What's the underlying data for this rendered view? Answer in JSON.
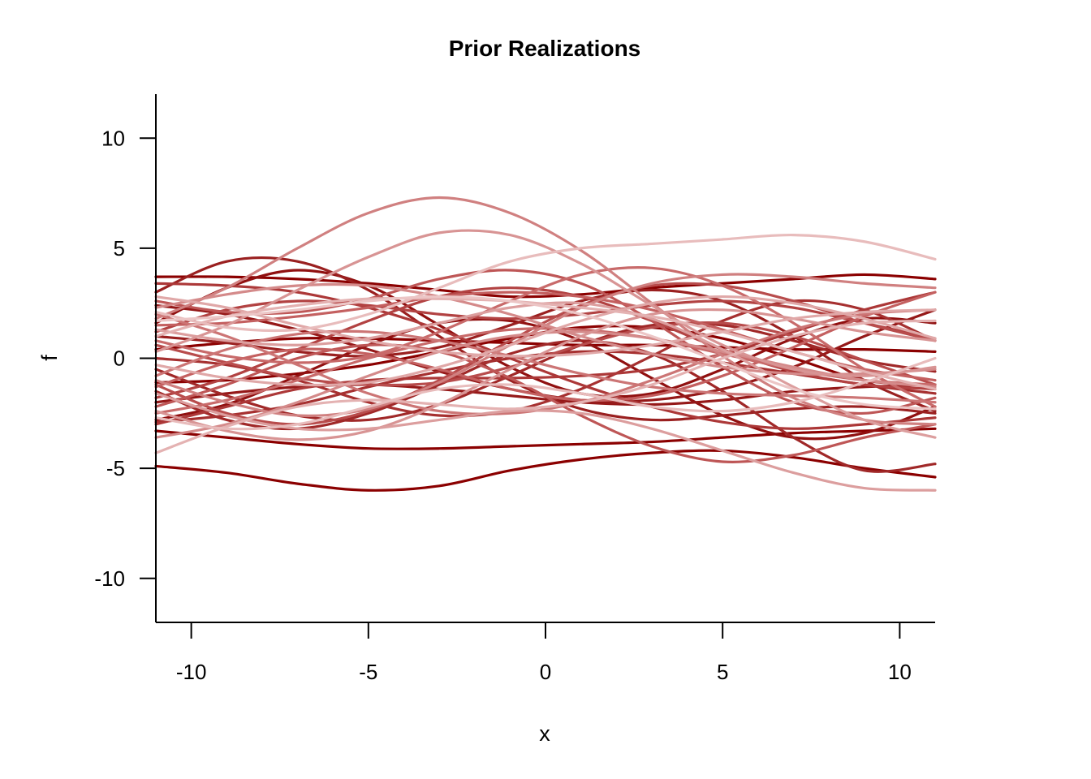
{
  "chart_data": {
    "type": "line",
    "title": "Prior Realizations",
    "xlabel": "x",
    "ylabel": "f",
    "xlim": [
      -11,
      11
    ],
    "ylim": [
      -12,
      12
    ],
    "xticks": [
      -10,
      -5,
      0,
      5,
      10
    ],
    "yticks": [
      -10,
      -5,
      0,
      5,
      10
    ],
    "grid": false,
    "legend": "none",
    "x": [
      -11,
      -9,
      -7,
      -5,
      -3,
      -1,
      1,
      3,
      5,
      7,
      9,
      11
    ],
    "series": [
      {
        "color": "#8b0000",
        "values": [
          3.7,
          3.7,
          3.6,
          3.4,
          3.1,
          2.8,
          2.9,
          3.2,
          3.4,
          3.6,
          3.8,
          3.6
        ]
      },
      {
        "color": "#8b0000",
        "values": [
          -4.9,
          -5.2,
          -5.7,
          -6.0,
          -5.8,
          -5.1,
          -4.6,
          -4.3,
          -4.2,
          -4.5,
          -5.0,
          -5.4
        ]
      },
      {
        "color": "#8b0000",
        "values": [
          0.4,
          0.7,
          0.9,
          0.9,
          0.8,
          0.7,
          0.6,
          0.6,
          0.5,
          0.4,
          0.4,
          0.3
        ]
      },
      {
        "color": "#8b0000",
        "values": [
          -1.1,
          -1.0,
          -0.7,
          -0.3,
          0.3,
          0.9,
          1.4,
          1.4,
          0.9,
          0.0,
          -1.0,
          -1.2
        ]
      },
      {
        "color": "#8b0000",
        "values": [
          -3.3,
          -3.6,
          -3.9,
          -4.1,
          -4.1,
          -4.0,
          -3.9,
          -3.8,
          -3.6,
          -3.4,
          -3.3,
          -3.2
        ]
      },
      {
        "color": "#901010",
        "values": [
          1.6,
          3.2,
          4.0,
          3.3,
          1.5,
          -0.4,
          -1.6,
          -1.6,
          -0.5,
          0.9,
          1.8,
          1.6
        ]
      },
      {
        "color": "#901010",
        "values": [
          -2.8,
          -2.1,
          -0.8,
          0.6,
          1.6,
          1.7,
          0.8,
          -0.9,
          -2.6,
          -3.6,
          -3.4,
          -2.2
        ]
      },
      {
        "color": "#951818",
        "values": [
          2.4,
          2.0,
          1.3,
          0.4,
          -0.6,
          -1.4,
          -1.9,
          -1.9,
          -1.4,
          -0.4,
          1.0,
          2.2
        ]
      },
      {
        "color": "#951818",
        "values": [
          -2.0,
          -1.6,
          -1.3,
          -1.2,
          -1.4,
          -1.7,
          -2.0,
          -2.1,
          -1.9,
          -1.5,
          -1.3,
          -1.2
        ]
      },
      {
        "color": "#9a2020",
        "values": [
          3.0,
          4.4,
          4.4,
          3.1,
          1.0,
          -1.0,
          -2.3,
          -2.8,
          -2.6,
          -2.3,
          -2.2,
          -2.5
        ]
      },
      {
        "color": "#9a2020",
        "values": [
          1.0,
          0.7,
          0.3,
          0.1,
          0.5,
          1.5,
          2.6,
          3.1,
          2.6,
          1.0,
          -1.0,
          -2.4
        ]
      },
      {
        "color": "#a02828",
        "values": [
          -0.5,
          -1.7,
          -2.6,
          -2.8,
          -2.1,
          -0.8,
          0.6,
          1.5,
          1.5,
          0.8,
          -0.1,
          -0.6
        ]
      },
      {
        "color": "#a02828",
        "values": [
          -1.5,
          -2.8,
          -3.2,
          -2.5,
          -1.2,
          0.2,
          0.8,
          0.2,
          -1.5,
          -3.6,
          -5.1,
          -4.8
        ]
      },
      {
        "color": "#a63030",
        "values": [
          0.0,
          -0.3,
          -1.0,
          -2.0,
          -2.6,
          -2.4,
          -1.4,
          0.1,
          1.7,
          2.6,
          2.2,
          0.8
        ]
      },
      {
        "color": "#a63030",
        "values": [
          -2.9,
          -2.6,
          -2.1,
          -1.3,
          -0.6,
          0.0,
          0.3,
          0.2,
          -0.2,
          -0.7,
          -1.2,
          -1.6
        ]
      },
      {
        "color": "#ac3838",
        "values": [
          3.4,
          3.3,
          3.0,
          2.3,
          1.3,
          0.0,
          -1.2,
          -2.2,
          -2.9,
          -3.2,
          -3.0,
          -2.7
        ]
      },
      {
        "color": "#ac3838",
        "values": [
          -3.0,
          -2.2,
          -1.4,
          -1.0,
          -0.9,
          -0.9,
          -0.8,
          -0.5,
          0.2,
          1.2,
          2.2,
          3.0
        ]
      },
      {
        "color": "#b24242",
        "values": [
          1.2,
          2.2,
          2.6,
          2.4,
          2.0,
          1.8,
          2.0,
          2.4,
          2.6,
          2.3,
          1.6,
          0.9
        ]
      },
      {
        "color": "#b24242",
        "values": [
          -1.8,
          -0.9,
          0.4,
          1.7,
          2.8,
          3.2,
          2.8,
          1.7,
          0.4,
          -0.6,
          -1.2,
          -1.4
        ]
      },
      {
        "color": "#b84c4c",
        "values": [
          -1.2,
          -2.5,
          -3.0,
          -2.4,
          -1.0,
          0.8,
          2.4,
          3.3,
          3.3,
          2.6,
          1.6,
          0.8
        ]
      },
      {
        "color": "#b84c4c",
        "values": [
          0.6,
          -0.2,
          -0.9,
          -1.2,
          -1.1,
          -0.4,
          0.6,
          1.4,
          1.6,
          1.0,
          -0.1,
          -1.2
        ]
      },
      {
        "color": "#be5656",
        "values": [
          2.6,
          2.1,
          2.1,
          2.7,
          3.6,
          4.0,
          3.4,
          1.7,
          -0.4,
          -2.0,
          -2.5,
          -1.8
        ]
      },
      {
        "color": "#be5656",
        "values": [
          -2.2,
          -1.2,
          0.0,
          0.6,
          0.3,
          -0.9,
          -2.6,
          -4.0,
          -4.7,
          -4.4,
          -3.6,
          -3.0
        ]
      },
      {
        "color": "#c46060",
        "values": [
          1.5,
          1.6,
          1.9,
          2.3,
          2.8,
          3.0,
          2.8,
          2.2,
          1.3,
          0.3,
          -0.5,
          -1.0
        ]
      },
      {
        "color": "#c46060",
        "values": [
          -1.3,
          -0.2,
          0.4,
          0.2,
          -0.5,
          -1.4,
          -1.9,
          -1.7,
          -0.8,
          0.5,
          1.9,
          3.0
        ]
      },
      {
        "color": "#c86a6a",
        "values": [
          0.8,
          0.1,
          -0.2,
          0.1,
          1.2,
          2.6,
          3.8,
          4.1,
          3.3,
          1.6,
          -0.5,
          -2.2
        ]
      },
      {
        "color": "#c86a6a",
        "values": [
          -2.5,
          -1.9,
          -1.0,
          0.0,
          0.8,
          1.3,
          1.3,
          0.9,
          0.2,
          -0.5,
          -1.0,
          -1.2
        ]
      },
      {
        "color": "#cc7575",
        "values": [
          2.0,
          1.0,
          -0.3,
          -1.6,
          -2.4,
          -2.5,
          -2.0,
          -1.0,
          0.2,
          1.3,
          2.0,
          2.2
        ]
      },
      {
        "color": "#cc7575",
        "values": [
          -0.8,
          0.4,
          1.1,
          1.2,
          0.8,
          0.1,
          -0.7,
          -1.3,
          -1.6,
          -1.7,
          -1.8,
          -2.0
        ]
      },
      {
        "color": "#d08080",
        "values": [
          1.8,
          3.2,
          5.0,
          6.6,
          7.3,
          6.6,
          4.9,
          2.5,
          0.1,
          -1.8,
          -2.8,
          -3.0
        ]
      },
      {
        "color": "#d08080",
        "values": [
          -1.0,
          -2.0,
          -2.6,
          -2.3,
          -1.1,
          0.6,
          2.3,
          3.4,
          3.8,
          3.7,
          3.4,
          3.2
        ]
      },
      {
        "color": "#d48a8a",
        "values": [
          2.3,
          2.9,
          3.3,
          3.3,
          2.8,
          2.0,
          1.0,
          0.2,
          -0.4,
          -0.7,
          -0.7,
          -0.5
        ]
      },
      {
        "color": "#d48a8a",
        "values": [
          -3.6,
          -3.0,
          -2.0,
          -0.8,
          0.3,
          1.0,
          1.2,
          0.9,
          0.3,
          -0.4,
          -1.0,
          -1.3
        ]
      },
      {
        "color": "#d89494",
        "values": [
          0.3,
          1.5,
          3.1,
          4.6,
          5.7,
          5.6,
          4.3,
          2.4,
          0.6,
          -0.5,
          -0.8,
          -0.4
        ]
      },
      {
        "color": "#d89494",
        "values": [
          -2.4,
          -3.3,
          -3.7,
          -3.3,
          -2.1,
          -0.5,
          1.0,
          2.0,
          2.2,
          1.8,
          1.2,
          0.8
        ]
      },
      {
        "color": "#dc9e9e",
        "values": [
          1.3,
          0.8,
          0.6,
          0.9,
          1.6,
          2.3,
          2.5,
          1.8,
          0.4,
          -1.3,
          -2.8,
          -3.6
        ]
      },
      {
        "color": "#dc9e9e",
        "values": [
          -1.6,
          -2.6,
          -3.2,
          -3.2,
          -2.8,
          -2.4,
          -2.5,
          -3.2,
          -4.2,
          -5.2,
          -5.9,
          -6.0
        ]
      },
      {
        "color": "#e0a8a8",
        "values": [
          2.8,
          2.3,
          1.5,
          0.8,
          0.3,
          0.1,
          0.2,
          0.6,
          1.2,
          1.8,
          2.1,
          2.2
        ]
      },
      {
        "color": "#e0a8a8",
        "values": [
          -0.3,
          -0.9,
          -1.2,
          -1.1,
          -0.4,
          0.6,
          1.7,
          2.5,
          2.8,
          2.5,
          1.8,
          0.9
        ]
      },
      {
        "color": "#e4b2b2",
        "values": [
          1.0,
          1.9,
          2.4,
          2.7,
          2.7,
          2.6,
          2.3,
          1.9,
          1.2,
          0.3,
          -0.6,
          -1.4
        ]
      },
      {
        "color": "#e4b2b2",
        "values": [
          -4.3,
          -3.1,
          -2.2,
          -1.9,
          -2.1,
          -2.3,
          -2.0,
          -1.2,
          0.0,
          1.0,
          1.6,
          1.7
        ]
      },
      {
        "color": "#e8bcbc",
        "values": [
          2.1,
          1.4,
          1.3,
          2.0,
          3.2,
          4.4,
          5.0,
          5.2,
          5.4,
          5.6,
          5.3,
          4.5
        ]
      },
      {
        "color": "#e8bcbc",
        "values": [
          -2.7,
          -3.2,
          -3.0,
          -2.2,
          -1.4,
          -1.2,
          -1.6,
          -2.2,
          -2.4,
          -2.0,
          -1.1,
          0.0
        ]
      },
      {
        "color": "#ecc6c6",
        "values": [
          1.7,
          1.9,
          2.2,
          2.6,
          2.8,
          2.6,
          2.0,
          1.0,
          -0.2,
          -1.4,
          -2.1,
          -2.3
        ]
      }
    ]
  }
}
